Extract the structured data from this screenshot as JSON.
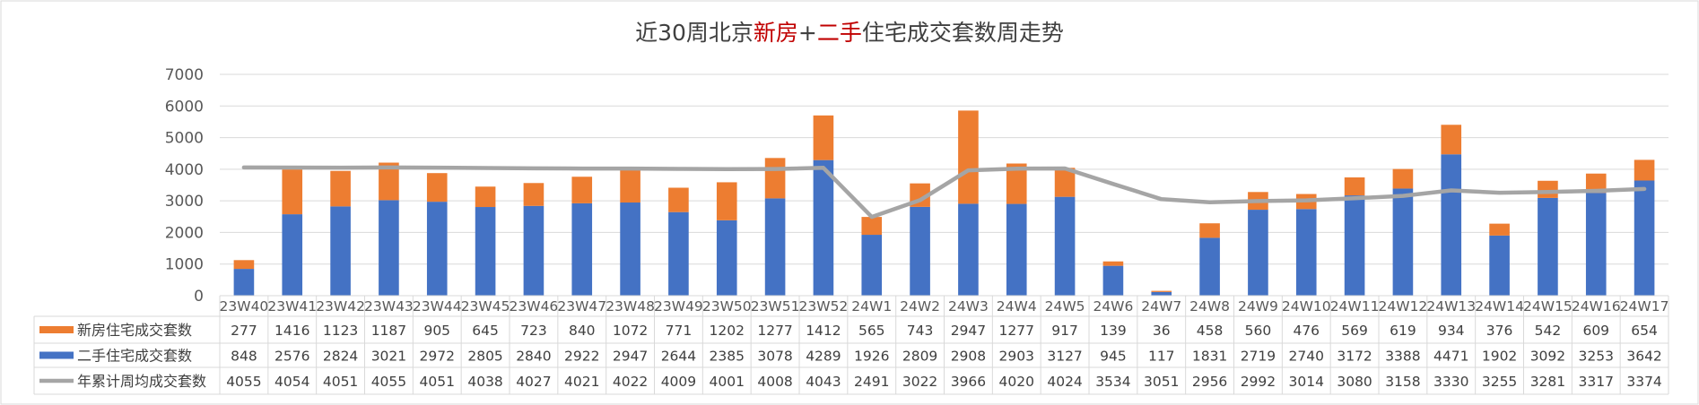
{
  "chart_data": {
    "type": "bar",
    "title": "近30周北京新房+二手住宅成交套数周走势",
    "title_segments": [
      {
        "text": "近30周北京",
        "color": "#404040"
      },
      {
        "text": "新房",
        "color": "#c00000"
      },
      {
        "text": "+",
        "color": "#404040"
      },
      {
        "text": "二手",
        "color": "#c00000"
      },
      {
        "text": "住宅成交套数周走势",
        "color": "#404040"
      }
    ],
    "xlabel": "",
    "ylabel": "",
    "ylim": [
      0,
      7000
    ],
    "yticks": [
      0,
      1000,
      2000,
      3000,
      4000,
      5000,
      6000,
      7000
    ],
    "grid": true,
    "legend_placement": "data-table-left",
    "categories": [
      "23W40",
      "23W41",
      "23W42",
      "23W43",
      "23W44",
      "23W45",
      "23W46",
      "23W47",
      "23W48",
      "23W49",
      "23W50",
      "23W51",
      "23W52",
      "24W1",
      "24W2",
      "24W3",
      "24W4",
      "24W5",
      "24W6",
      "24W7",
      "24W8",
      "24W9",
      "24W10",
      "24W11",
      "24W12",
      "24W13",
      "24W14",
      "24W15",
      "24W16",
      "24W17"
    ],
    "series": [
      {
        "name": "新房住宅成交套数",
        "kind": "stacked-bar",
        "color": "#ed7d31",
        "values": [
          277,
          1416,
          1123,
          1187,
          905,
          645,
          723,
          840,
          1072,
          771,
          1202,
          1277,
          1412,
          565,
          743,
          2947,
          1277,
          917,
          139,
          36,
          458,
          560,
          476,
          569,
          619,
          934,
          376,
          542,
          609,
          654
        ]
      },
      {
        "name": "二手住宅成交套数",
        "kind": "stacked-bar",
        "color": "#4472c4",
        "values": [
          848,
          2576,
          2824,
          3021,
          2972,
          2805,
          2840,
          2922,
          2947,
          2644,
          2385,
          3078,
          4289,
          1926,
          2809,
          2908,
          2903,
          3127,
          945,
          117,
          1831,
          2719,
          2740,
          3172,
          3388,
          4471,
          1902,
          3092,
          3253,
          3642
        ]
      },
      {
        "name": "年累计周均成交套数",
        "kind": "line",
        "color": "#a5a5a5",
        "values": [
          4055,
          4054,
          4051,
          4055,
          4051,
          4038,
          4027,
          4021,
          4022,
          4009,
          4001,
          4008,
          4043,
          2491,
          3022,
          3966,
          4020,
          4024,
          3534,
          3051,
          2956,
          2992,
          3014,
          3080,
          3158,
          3330,
          3255,
          3281,
          3317,
          3374
        ]
      }
    ]
  }
}
